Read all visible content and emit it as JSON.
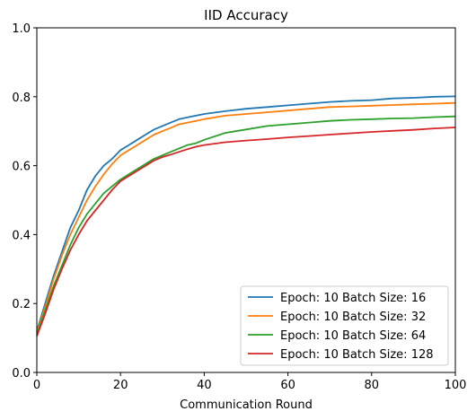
{
  "chart_data": {
    "type": "line",
    "title": "IID Accuracy",
    "xlabel": "Communication Round",
    "ylabel": "",
    "xlim": [
      0,
      100
    ],
    "ylim": [
      0,
      1.0
    ],
    "xticks": [
      0,
      20,
      40,
      60,
      80,
      100
    ],
    "yticks": [
      0.0,
      0.2,
      0.4,
      0.6,
      0.8,
      1.0
    ],
    "ytick_labels": [
      "0.0",
      "0.2",
      "0.4",
      "0.6",
      "0.8",
      "1.0"
    ],
    "grid": false,
    "legend_position": "lower-right",
    "series": [
      {
        "name": "Epoch: 10 Batch Size: 16",
        "color": "#1f77b4",
        "points": [
          [
            0,
            0.12
          ],
          [
            2,
            0.2
          ],
          [
            4,
            0.28
          ],
          [
            6,
            0.35
          ],
          [
            8,
            0.42
          ],
          [
            10,
            0.47
          ],
          [
            12,
            0.53
          ],
          [
            14,
            0.57
          ],
          [
            16,
            0.6
          ],
          [
            18,
            0.62
          ],
          [
            20,
            0.645
          ],
          [
            22,
            0.66
          ],
          [
            24,
            0.675
          ],
          [
            26,
            0.69
          ],
          [
            28,
            0.705
          ],
          [
            30,
            0.715
          ],
          [
            32,
            0.725
          ],
          [
            34,
            0.735
          ],
          [
            36,
            0.74
          ],
          [
            38,
            0.745
          ],
          [
            40,
            0.75
          ],
          [
            45,
            0.758
          ],
          [
            50,
            0.765
          ],
          [
            55,
            0.77
          ],
          [
            60,
            0.775
          ],
          [
            65,
            0.78
          ],
          [
            70,
            0.785
          ],
          [
            75,
            0.788
          ],
          [
            80,
            0.79
          ],
          [
            85,
            0.795
          ],
          [
            90,
            0.797
          ],
          [
            95,
            0.8
          ],
          [
            100,
            0.801
          ]
        ]
      },
      {
        "name": "Epoch: 10 Batch Size: 32",
        "color": "#ff7f0e",
        "points": [
          [
            0,
            0.115
          ],
          [
            2,
            0.19
          ],
          [
            4,
            0.27
          ],
          [
            6,
            0.34
          ],
          [
            8,
            0.4
          ],
          [
            10,
            0.45
          ],
          [
            12,
            0.5
          ],
          [
            14,
            0.54
          ],
          [
            16,
            0.575
          ],
          [
            18,
            0.605
          ],
          [
            20,
            0.63
          ],
          [
            22,
            0.645
          ],
          [
            24,
            0.66
          ],
          [
            26,
            0.675
          ],
          [
            28,
            0.69
          ],
          [
            30,
            0.7
          ],
          [
            32,
            0.71
          ],
          [
            34,
            0.72
          ],
          [
            36,
            0.725
          ],
          [
            38,
            0.73
          ],
          [
            40,
            0.735
          ],
          [
            45,
            0.745
          ],
          [
            50,
            0.75
          ],
          [
            55,
            0.755
          ],
          [
            60,
            0.76
          ],
          [
            65,
            0.765
          ],
          [
            70,
            0.77
          ],
          [
            75,
            0.772
          ],
          [
            80,
            0.774
          ],
          [
            85,
            0.776
          ],
          [
            90,
            0.778
          ],
          [
            95,
            0.78
          ],
          [
            100,
            0.782
          ]
        ]
      },
      {
        "name": "Epoch: 10 Batch Size: 64",
        "color": "#2ca02c",
        "points": [
          [
            0,
            0.11
          ],
          [
            2,
            0.18
          ],
          [
            4,
            0.25
          ],
          [
            6,
            0.31
          ],
          [
            8,
            0.37
          ],
          [
            10,
            0.42
          ],
          [
            12,
            0.46
          ],
          [
            14,
            0.49
          ],
          [
            16,
            0.52
          ],
          [
            18,
            0.54
          ],
          [
            20,
            0.56
          ],
          [
            22,
            0.575
          ],
          [
            24,
            0.59
          ],
          [
            26,
            0.605
          ],
          [
            28,
            0.62
          ],
          [
            30,
            0.63
          ],
          [
            32,
            0.64
          ],
          [
            34,
            0.65
          ],
          [
            36,
            0.66
          ],
          [
            38,
            0.665
          ],
          [
            40,
            0.675
          ],
          [
            45,
            0.695
          ],
          [
            50,
            0.705
          ],
          [
            55,
            0.715
          ],
          [
            60,
            0.72
          ],
          [
            65,
            0.725
          ],
          [
            70,
            0.73
          ],
          [
            75,
            0.733
          ],
          [
            80,
            0.735
          ],
          [
            85,
            0.737
          ],
          [
            90,
            0.738
          ],
          [
            95,
            0.741
          ],
          [
            100,
            0.743
          ]
        ]
      },
      {
        "name": "Epoch: 10 Batch Size: 128",
        "color": "#d62728",
        "points": [
          [
            0,
            0.105
          ],
          [
            2,
            0.17
          ],
          [
            4,
            0.24
          ],
          [
            6,
            0.3
          ],
          [
            8,
            0.355
          ],
          [
            10,
            0.4
          ],
          [
            12,
            0.44
          ],
          [
            14,
            0.47
          ],
          [
            16,
            0.5
          ],
          [
            18,
            0.53
          ],
          [
            20,
            0.555
          ],
          [
            22,
            0.57
          ],
          [
            24,
            0.585
          ],
          [
            26,
            0.6
          ],
          [
            28,
            0.615
          ],
          [
            30,
            0.625
          ],
          [
            32,
            0.632
          ],
          [
            34,
            0.64
          ],
          [
            36,
            0.648
          ],
          [
            38,
            0.655
          ],
          [
            40,
            0.66
          ],
          [
            45,
            0.668
          ],
          [
            50,
            0.673
          ],
          [
            55,
            0.677
          ],
          [
            60,
            0.682
          ],
          [
            65,
            0.686
          ],
          [
            70,
            0.69
          ],
          [
            75,
            0.694
          ],
          [
            80,
            0.698
          ],
          [
            85,
            0.701
          ],
          [
            90,
            0.704
          ],
          [
            95,
            0.708
          ],
          [
            100,
            0.711
          ]
        ]
      }
    ]
  }
}
